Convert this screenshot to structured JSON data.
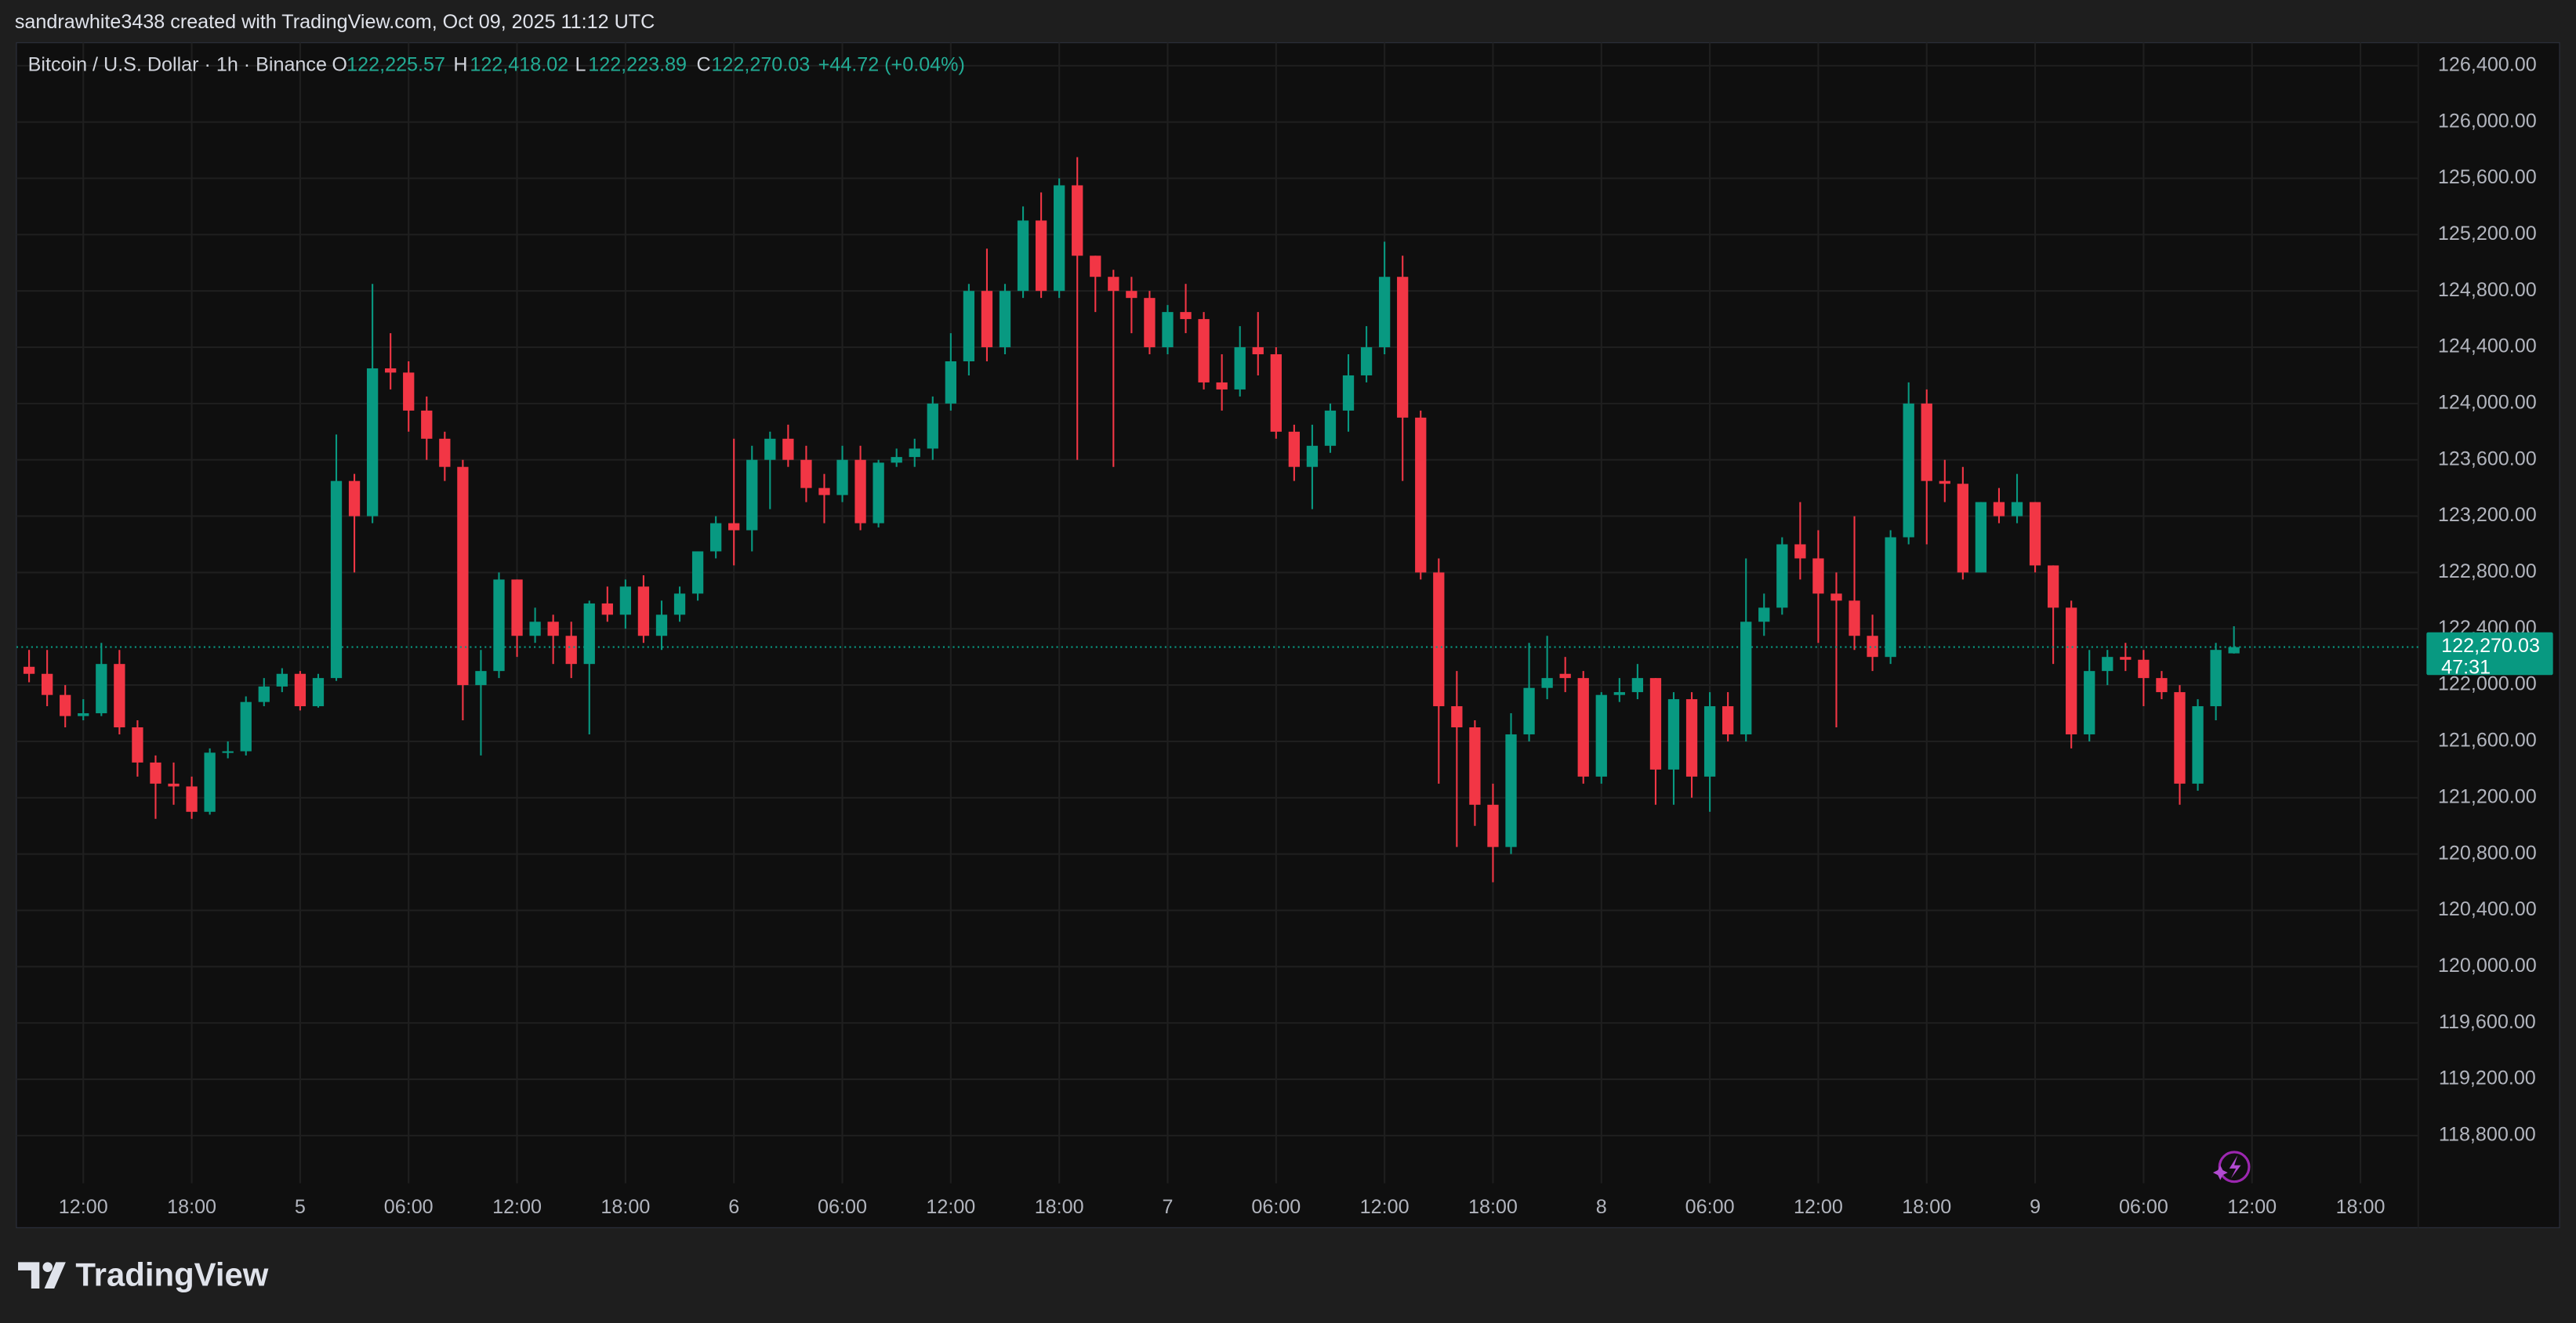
{
  "header": {
    "attribution": "sandrawhite3438 created with TradingView.com, Oct 09, 2025 11:12 UTC"
  },
  "footer": {
    "brand": "TradingView"
  },
  "chart_data": {
    "type": "candlestick",
    "legend": {
      "symbol": "Bitcoin / U.S. Dollar · 1h · Binance",
      "ohlc": [
        {
          "key": "O",
          "value": "122,225.57"
        },
        {
          "key": "H",
          "value": "122,418.02"
        },
        {
          "key": "L",
          "value": "122,223.89"
        },
        {
          "key": "C",
          "value": "122,270.03"
        }
      ],
      "change": "+44.72 (+0.04%)"
    },
    "last_price_label": "122,270.03",
    "countdown": "47:31",
    "up_color": "#089981",
    "down_color": "#f23645",
    "grid": true,
    "ylim": [
      118461,
      126563
    ],
    "yticks": [
      {
        "value": 118800,
        "label": "118,800.00"
      },
      {
        "value": 119200,
        "label": "119,200.00"
      },
      {
        "value": 119600,
        "label": "119,600.00"
      },
      {
        "value": 120000,
        "label": "120,000.00"
      },
      {
        "value": 120400,
        "label": "120,400.00"
      },
      {
        "value": 120800,
        "label": "120,800.00"
      },
      {
        "value": 121200,
        "label": "121,200.00"
      },
      {
        "value": 121600,
        "label": "121,600.00"
      },
      {
        "value": 122000,
        "label": "122,000.00"
      },
      {
        "value": 122400,
        "label": "122,400.00"
      },
      {
        "value": 122800,
        "label": "122,800.00"
      },
      {
        "value": 123200,
        "label": "123,200.00"
      },
      {
        "value": 123600,
        "label": "123,600.00"
      },
      {
        "value": 124000,
        "label": "124,000.00"
      },
      {
        "value": 124400,
        "label": "124,400.00"
      },
      {
        "value": 124800,
        "label": "124,800.00"
      },
      {
        "value": 125200,
        "label": "125,200.00"
      },
      {
        "value": 125600,
        "label": "125,600.00"
      },
      {
        "value": 126000,
        "label": "126,000.00"
      },
      {
        "value": 126400,
        "label": "126,400.00"
      }
    ],
    "xlim": [
      -0.7,
      132.2
    ],
    "xticks": [
      {
        "value": 3,
        "label": "12:00"
      },
      {
        "value": 9,
        "label": "18:00"
      },
      {
        "value": 15,
        "label": "5"
      },
      {
        "value": 21,
        "label": "06:00"
      },
      {
        "value": 27,
        "label": "12:00"
      },
      {
        "value": 33,
        "label": "18:00"
      },
      {
        "value": 39,
        "label": "6"
      },
      {
        "value": 45,
        "label": "06:00"
      },
      {
        "value": 51,
        "label": "12:00"
      },
      {
        "value": 57,
        "label": "18:00"
      },
      {
        "value": 63,
        "label": "7"
      },
      {
        "value": 69,
        "label": "06:00"
      },
      {
        "value": 75,
        "label": "12:00"
      },
      {
        "value": 81,
        "label": "18:00"
      },
      {
        "value": 87,
        "label": "8"
      },
      {
        "value": 93,
        "label": "06:00"
      },
      {
        "value": 99,
        "label": "12:00"
      },
      {
        "value": 105,
        "label": "18:00"
      },
      {
        "value": 111,
        "label": "9"
      },
      {
        "value": 117,
        "label": "06:00"
      },
      {
        "value": 123,
        "label": "12:00"
      },
      {
        "value": 129,
        "label": "18:00"
      }
    ],
    "ohlc": [
      [
        122130,
        122250,
        122020,
        122080
      ],
      [
        122080,
        122250,
        121850,
        121930
      ],
      [
        121930,
        122000,
        121700,
        121780
      ],
      [
        121780,
        121900,
        121750,
        121800
      ],
      [
        121800,
        122300,
        121780,
        122150
      ],
      [
        122150,
        122250,
        121650,
        121700
      ],
      [
        121700,
        121750,
        121350,
        121450
      ],
      [
        121450,
        121500,
        121050,
        121300
      ],
      [
        121300,
        121450,
        121150,
        121280
      ],
      [
        121280,
        121350,
        121050,
        121100
      ],
      [
        121100,
        121550,
        121080,
        121520
      ],
      [
        121520,
        121600,
        121480,
        121530
      ],
      [
        121530,
        121920,
        121500,
        121880
      ],
      [
        121880,
        122050,
        121850,
        121990
      ],
      [
        121990,
        122120,
        121950,
        122080
      ],
      [
        122080,
        122100,
        121820,
        121850
      ],
      [
        121850,
        122080,
        121840,
        122050
      ],
      [
        122050,
        123780,
        122030,
        123450
      ],
      [
        123450,
        123500,
        122800,
        123200
      ],
      [
        123200,
        124850,
        123150,
        124250
      ],
      [
        124250,
        124500,
        124100,
        124220
      ],
      [
        124220,
        124300,
        123800,
        123950
      ],
      [
        123950,
        124050,
        123600,
        123750
      ],
      [
        123750,
        123800,
        123450,
        123550
      ],
      [
        123550,
        123600,
        121750,
        122000
      ],
      [
        122000,
        122250,
        121500,
        122100
      ],
      [
        122100,
        122800,
        122050,
        122750
      ],
      [
        122750,
        122750,
        122200,
        122350
      ],
      [
        122350,
        122550,
        122300,
        122450
      ],
      [
        122450,
        122500,
        122150,
        122350
      ],
      [
        122350,
        122450,
        122050,
        122150
      ],
      [
        122150,
        122600,
        121650,
        122580
      ],
      [
        122580,
        122700,
        122450,
        122500
      ],
      [
        122500,
        122750,
        122400,
        122700
      ],
      [
        122700,
        122780,
        122300,
        122350
      ],
      [
        122350,
        122600,
        122250,
        122500
      ],
      [
        122500,
        122700,
        122450,
        122650
      ],
      [
        122650,
        122950,
        122600,
        122950
      ],
      [
        122950,
        123200,
        122900,
        123150
      ],
      [
        123150,
        123750,
        122850,
        123100
      ],
      [
        123100,
        123700,
        122950,
        123600
      ],
      [
        123600,
        123800,
        123250,
        123750
      ],
      [
        123750,
        123850,
        123550,
        123600
      ],
      [
        123600,
        123700,
        123300,
        123400
      ],
      [
        123400,
        123500,
        123150,
        123350
      ],
      [
        123350,
        123700,
        123300,
        123600
      ],
      [
        123600,
        123700,
        123100,
        123150
      ],
      [
        123150,
        123600,
        123120,
        123580
      ],
      [
        123580,
        123680,
        123550,
        123620
      ],
      [
        123620,
        123750,
        123550,
        123680
      ],
      [
        123680,
        124050,
        123600,
        124000
      ],
      [
        124000,
        124500,
        123950,
        124300
      ],
      [
        124300,
        124850,
        124200,
        124800
      ],
      [
        124800,
        125100,
        124300,
        124400
      ],
      [
        124400,
        124850,
        124350,
        124800
      ],
      [
        124800,
        125400,
        124750,
        125300
      ],
      [
        125300,
        125500,
        124750,
        124800
      ],
      [
        124800,
        125600,
        124750,
        125550
      ],
      [
        125550,
        125750,
        123600,
        125050
      ],
      [
        125050,
        125050,
        124650,
        124900
      ],
      [
        124900,
        124950,
        123550,
        124800
      ],
      [
        124800,
        124900,
        124500,
        124750
      ],
      [
        124750,
        124800,
        124350,
        124400
      ],
      [
        124400,
        124700,
        124350,
        124650
      ],
      [
        124650,
        124850,
        124500,
        124600
      ],
      [
        124600,
        124650,
        124100,
        124150
      ],
      [
        124150,
        124350,
        123950,
        124100
      ],
      [
        124100,
        124550,
        124050,
        124400
      ],
      [
        124400,
        124650,
        124200,
        124350
      ],
      [
        124350,
        124400,
        123750,
        123800
      ],
      [
        123800,
        123850,
        123450,
        123550
      ],
      [
        123550,
        123850,
        123250,
        123700
      ],
      [
        123700,
        124000,
        123650,
        123950
      ],
      [
        123950,
        124350,
        123800,
        124200
      ],
      [
        124200,
        124550,
        124150,
        124400
      ],
      [
        124400,
        125150,
        124350,
        124900
      ],
      [
        124900,
        125050,
        123450,
        123900
      ],
      [
        123900,
        123950,
        122750,
        122800
      ],
      [
        122800,
        122900,
        121300,
        121850
      ],
      [
        121850,
        122100,
        120850,
        121700
      ],
      [
        121700,
        121750,
        121000,
        121150
      ],
      [
        121150,
        121300,
        120600,
        120850
      ],
      [
        120850,
        121800,
        120800,
        121650
      ],
      [
        121650,
        122300,
        121600,
        121980
      ],
      [
        121980,
        122350,
        121900,
        122050
      ],
      [
        122080,
        122200,
        121950,
        122050
      ],
      [
        122050,
        122100,
        121300,
        121350
      ],
      [
        121350,
        121950,
        121300,
        121930
      ],
      [
        121930,
        122050,
        121880,
        121950
      ],
      [
        121950,
        122150,
        121900,
        122050
      ],
      [
        122050,
        122050,
        121150,
        121400
      ],
      [
        121400,
        121950,
        121150,
        121900
      ],
      [
        121900,
        121950,
        121200,
        121350
      ],
      [
        121350,
        121950,
        121100,
        121850
      ],
      [
        121850,
        121950,
        121600,
        121650
      ],
      [
        121650,
        122900,
        121600,
        122450
      ],
      [
        122450,
        122650,
        122350,
        122550
      ],
      [
        122550,
        123050,
        122500,
        123000
      ],
      [
        123000,
        123300,
        122750,
        122900
      ],
      [
        122900,
        123100,
        122300,
        122650
      ],
      [
        122650,
        122800,
        121700,
        122600
      ],
      [
        122600,
        123200,
        122250,
        122350
      ],
      [
        122350,
        122500,
        122100,
        122200
      ],
      [
        122200,
        123100,
        122150,
        123050
      ],
      [
        123050,
        124150,
        123000,
        124000
      ],
      [
        124000,
        124100,
        123000,
        123450
      ],
      [
        123450,
        123600,
        123300,
        123430
      ],
      [
        123430,
        123550,
        122750,
        122800
      ],
      [
        122800,
        123300,
        122800,
        123300
      ],
      [
        123300,
        123400,
        123150,
        123200
      ],
      [
        123200,
        123500,
        123150,
        123300
      ],
      [
        123300,
        123300,
        122800,
        122850
      ],
      [
        122850,
        122850,
        122150,
        122550
      ],
      [
        122550,
        122600,
        121550,
        121650
      ],
      [
        121650,
        122250,
        121600,
        122100
      ],
      [
        122100,
        122250,
        122000,
        122200
      ],
      [
        122200,
        122300,
        122100,
        122180
      ],
      [
        122180,
        122250,
        121850,
        122050
      ],
      [
        122050,
        122100,
        121900,
        121950
      ],
      [
        121950,
        122000,
        121150,
        121300
      ],
      [
        121300,
        121900,
        121250,
        121850
      ],
      [
        121850,
        122300,
        121750,
        122250
      ],
      [
        122225.57,
        122418.02,
        122223.89,
        122270.03
      ]
    ]
  }
}
